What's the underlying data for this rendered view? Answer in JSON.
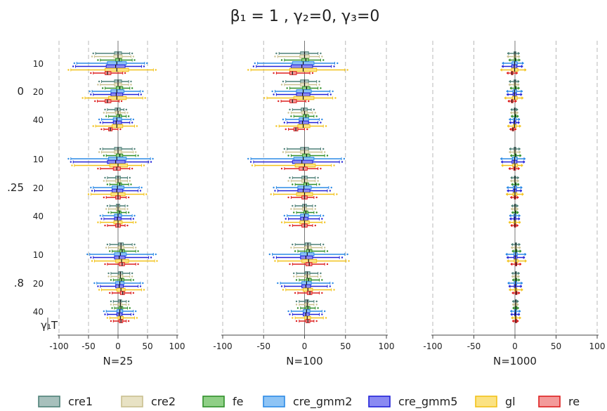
{
  "chart_data": {
    "type": "boxplot",
    "title": "β₁ = 1        , γ₂=0, γ₃=0",
    "panels": [
      {
        "label": "N=25",
        "scale": 1.0
      },
      {
        "label": "N=100",
        "scale": 0.82
      },
      {
        "label": "N=1000",
        "scale": 0.2
      }
    ],
    "x_ticks": [
      -100,
      -50,
      0,
      50,
      100
    ],
    "xlim": [
      -100,
      100
    ],
    "y_groups": [
      {
        "label": "0",
        "centers": [
          10,
          20,
          40
        ]
      },
      {
        "label": ".25",
        "centers": [
          10,
          20,
          40
        ]
      },
      {
        "label": ".8",
        "centers": [
          10,
          20,
          40
        ]
      }
    ],
    "y_axis_label": "γ₁T",
    "series": [
      {
        "name": "cre1",
        "color": "#4f8178",
        "face": "#a7c0bc"
      },
      {
        "name": "cre2",
        "color": "#c9c08f",
        "face": "#e8e2c4"
      },
      {
        "name": "fe",
        "color": "#2f8f2a",
        "face": "#8fcf86"
      },
      {
        "name": "cre_gmm2",
        "color": "#2c8ae6",
        "face": "#8ec4f5"
      },
      {
        "name": "cre_gmm5",
        "color": "#2222d8",
        "face": "#8a8af2"
      },
      {
        "name": "gl",
        "color": "#f2c21a",
        "face": "#fbe283"
      },
      {
        "name": "re",
        "color": "#dd2020",
        "face": "#f39a9a"
      }
    ],
    "box_stats_N25": {
      "gamma_0": {
        "T10": {
          "cre1": [
            -38,
            -6,
            0,
            6,
            20
          ],
          "cre2": [
            -40,
            -7,
            0,
            7,
            22
          ],
          "fe": [
            -30,
            -4,
            2,
            6,
            24
          ],
          "cre_gmm2": [
            -70,
            -18,
            -2,
            14,
            45
          ],
          "cre_gmm5": [
            -72,
            -20,
            -4,
            12,
            40
          ],
          "gl": [
            -80,
            -22,
            -2,
            18,
            60
          ],
          "re": [
            -42,
            -22,
            -18,
            -12,
            8
          ]
        },
        "T20": {
          "cre1": [
            -28,
            -6,
            0,
            6,
            18
          ],
          "cre2": [
            -30,
            -6,
            0,
            6,
            18
          ],
          "fe": [
            -22,
            -3,
            3,
            8,
            20
          ],
          "cre_gmm2": [
            -44,
            -12,
            -2,
            10,
            38
          ],
          "cre_gmm5": [
            -42,
            -12,
            -3,
            8,
            35
          ],
          "gl": [
            -56,
            -16,
            -2,
            14,
            42
          ],
          "re": [
            -35,
            -22,
            -18,
            -12,
            2
          ]
        },
        "T40": {
          "cre1": [
            -18,
            -5,
            -1,
            4,
            10
          ],
          "cre2": [
            -20,
            -4,
            0,
            4,
            12
          ],
          "fe": [
            -16,
            -2,
            2,
            6,
            14
          ],
          "cre_gmm2": [
            -28,
            -8,
            -2,
            6,
            22
          ],
          "cre_gmm5": [
            -26,
            -8,
            -3,
            6,
            20
          ],
          "gl": [
            -38,
            -10,
            -2,
            8,
            28
          ],
          "re": [
            -24,
            -16,
            -13,
            -10,
            0
          ]
        }
      },
      "gamma_25": {
        "T10": {
          "cre1": [
            -26,
            -6,
            0,
            6,
            24
          ],
          "cre2": [
            -28,
            -6,
            0,
            6,
            26
          ],
          "fe": [
            -20,
            -3,
            3,
            8,
            30
          ],
          "cre_gmm2": [
            -80,
            -16,
            -2,
            14,
            55
          ],
          "cre_gmm5": [
            -76,
            -18,
            -4,
            12,
            52
          ],
          "gl": [
            -74,
            -14,
            0,
            16,
            40
          ],
          "re": [
            -30,
            -8,
            -2,
            4,
            20
          ]
        },
        "T20": {
          "cre1": [
            -18,
            -4,
            0,
            4,
            16
          ],
          "cre2": [
            -20,
            -4,
            0,
            4,
            16
          ],
          "fe": [
            -14,
            -1,
            3,
            6,
            18
          ],
          "cre_gmm2": [
            -42,
            -10,
            -1,
            10,
            36
          ],
          "cre_gmm5": [
            -40,
            -10,
            -2,
            8,
            34
          ],
          "gl": [
            -46,
            -12,
            0,
            12,
            44
          ],
          "re": [
            -20,
            -4,
            0,
            4,
            14
          ]
        },
        "T40": {
          "cre1": [
            -14,
            -3,
            0,
            3,
            12
          ],
          "cre2": [
            -16,
            -3,
            0,
            3,
            12
          ],
          "fe": [
            -12,
            -1,
            2,
            5,
            14
          ],
          "cre_gmm2": [
            -26,
            -6,
            0,
            6,
            24
          ],
          "cre_gmm5": [
            -24,
            -6,
            -1,
            5,
            22
          ],
          "gl": [
            -30,
            -7,
            0,
            7,
            26
          ],
          "re": [
            -18,
            -4,
            0,
            4,
            12
          ]
        }
      },
      "gamma_8": {
        "T10": {
          "cre1": [
            -14,
            1,
            5,
            9,
            24
          ],
          "cre2": [
            -16,
            1,
            5,
            10,
            26
          ],
          "fe": [
            -10,
            3,
            7,
            11,
            30
          ],
          "cre_gmm2": [
            -48,
            -6,
            4,
            14,
            60
          ],
          "cre_gmm5": [
            -42,
            -6,
            2,
            12,
            52
          ],
          "gl": [
            -40,
            -4,
            6,
            18,
            62
          ],
          "re": [
            -18,
            2,
            7,
            11,
            30
          ]
        },
        "T20": {
          "cre1": [
            -12,
            1,
            4,
            8,
            20
          ],
          "cre2": [
            -12,
            1,
            4,
            8,
            20
          ],
          "fe": [
            -8,
            3,
            6,
            10,
            22
          ],
          "cre_gmm2": [
            -36,
            -4,
            3,
            10,
            38
          ],
          "cre_gmm5": [
            -30,
            -4,
            2,
            9,
            34
          ],
          "gl": [
            -28,
            -2,
            5,
            12,
            40
          ],
          "re": [
            -10,
            4,
            8,
            11,
            22
          ]
        },
        "T40": {
          "cre1": [
            -8,
            1,
            4,
            6,
            14
          ],
          "cre2": [
            -8,
            1,
            4,
            6,
            14
          ],
          "fe": [
            -6,
            2,
            5,
            8,
            16
          ],
          "cre_gmm2": [
            -20,
            -2,
            3,
            8,
            26
          ],
          "cre_gmm5": [
            -18,
            -2,
            2,
            7,
            22
          ],
          "gl": [
            -14,
            0,
            4,
            9,
            28
          ],
          "re": [
            -8,
            2,
            5,
            8,
            14
          ]
        }
      }
    }
  },
  "legend": [
    "cre1",
    "cre2",
    "fe",
    "cre_gmm2",
    "cre_gmm5",
    "gl",
    "re"
  ]
}
